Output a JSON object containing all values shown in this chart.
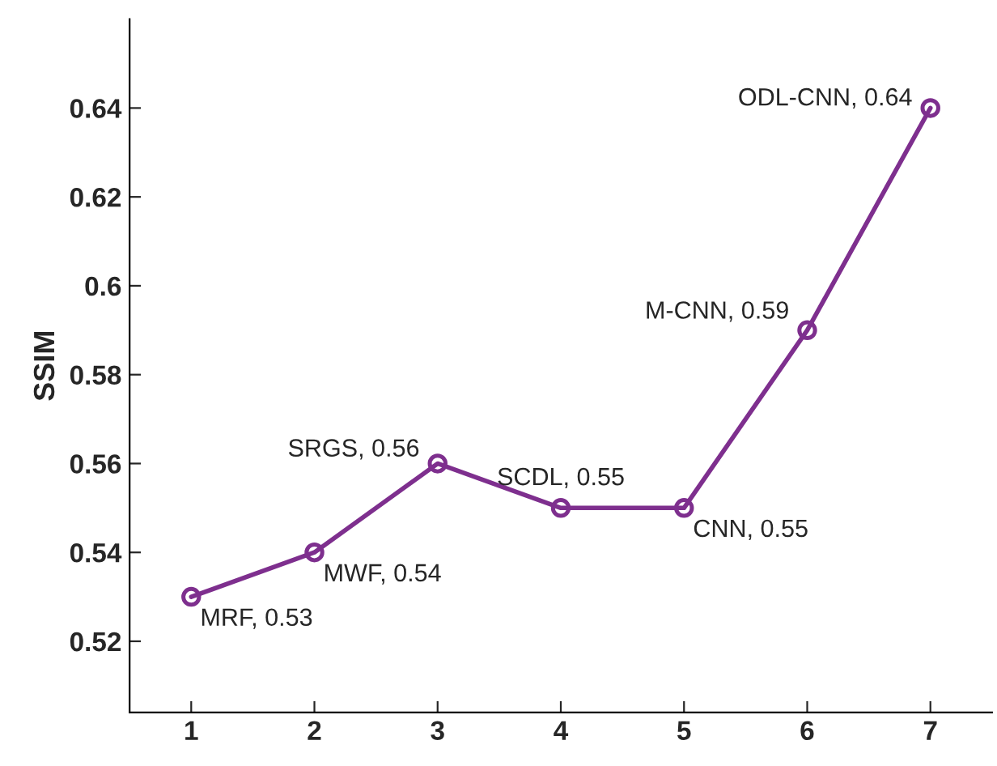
{
  "chart_data": {
    "type": "line",
    "ylabel": "SSIM",
    "x": [
      1,
      2,
      3,
      4,
      5,
      6,
      7
    ],
    "series": [
      {
        "color": "#7e2f8e",
        "values": [
          0.53,
          0.54,
          0.56,
          0.55,
          0.55,
          0.59,
          0.64
        ]
      }
    ],
    "xlim": [
      0.5,
      7.5
    ],
    "xticks": [
      1,
      2,
      3,
      4,
      5,
      6,
      7
    ],
    "ylim": [
      0.504,
      0.66
    ],
    "yticks": [
      0.52,
      0.54,
      0.56,
      0.58,
      {
        "value": 0.6,
        "label": "0.6"
      },
      0.62,
      0.64
    ],
    "marker": "circle",
    "line_style": "solid",
    "grid": false,
    "legend": false,
    "annotations": [
      {
        "text": "MRF, 0.53",
        "x": 1,
        "y": 0.53
      },
      {
        "text": "MWF, 0.54",
        "x": 2,
        "y": 0.54
      },
      {
        "text": "SRGS, 0.56",
        "x": 3,
        "y": 0.56
      },
      {
        "text": "SCDL, 0.55",
        "x": 4,
        "y": 0.55
      },
      {
        "text": "CNN, 0.55",
        "x": 5,
        "y": 0.55
      },
      {
        "text": "M-CNN, 0.59",
        "x": 6,
        "y": 0.59
      },
      {
        "text": "ODL-CNN, 0.64",
        "x": 7,
        "y": 0.64
      }
    ]
  }
}
